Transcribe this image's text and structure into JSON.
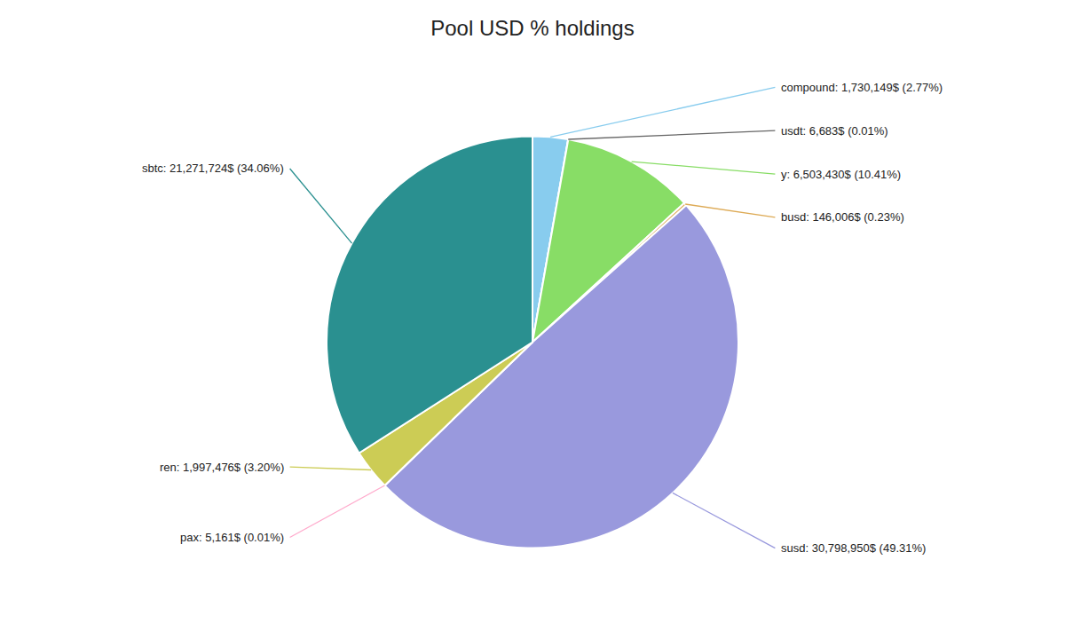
{
  "chart_data": {
    "type": "pie",
    "title": "Pool USD % holdings",
    "categories": [
      "compound",
      "usdt",
      "y",
      "busd",
      "susd",
      "pax",
      "ren",
      "sbtc"
    ],
    "values": [
      1730149,
      6683,
      6503430,
      146006,
      30798950,
      5161,
      1997476,
      21271724
    ],
    "value_labels": [
      "compound: 1,730,149$ (2.77%)",
      "usdt: 6,683$ (0.01%)",
      "y: 6,503,430$ (10.41%)",
      "busd: 146,006$ (0.23%)",
      "susd: 30,798,950$ (49.31%)",
      "pax: 5,161$ (0.01%)",
      "ren: 1,997,476$ (3.20%)",
      "sbtc: 21,271,724$ (34.06%)"
    ],
    "colors": [
      "#88ccee",
      "#666666",
      "#88dd66",
      "#ddaa55",
      "#9999dd",
      "#ffaacc",
      "#cccc55",
      "#2a9090"
    ]
  }
}
